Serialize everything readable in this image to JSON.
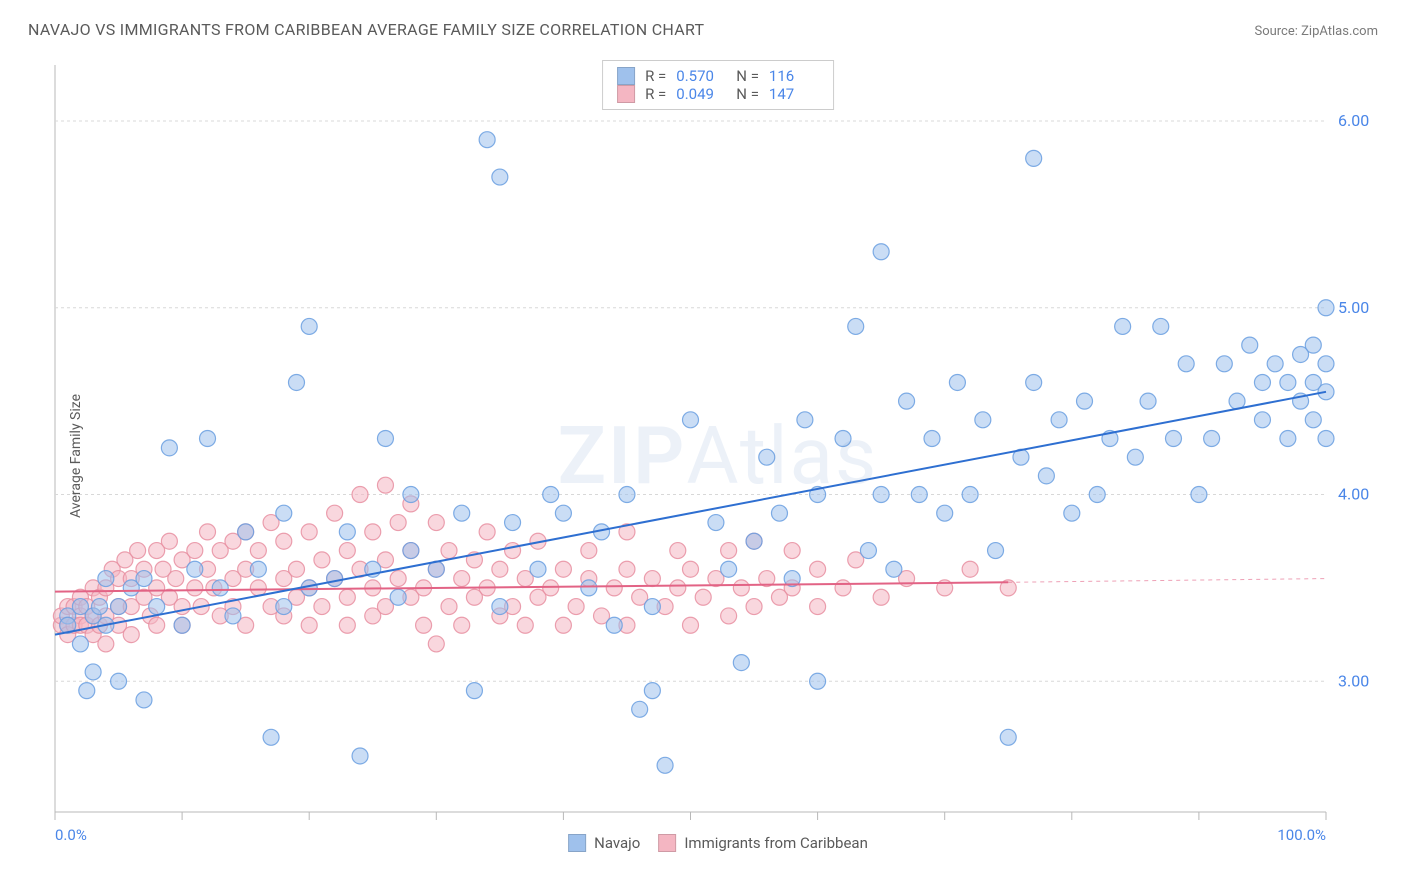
{
  "header": {
    "title": "NAVAJO VS IMMIGRANTS FROM CARIBBEAN AVERAGE FAMILY SIZE CORRELATION CHART",
    "source_label": "Source: ZipAtlas.com"
  },
  "ylabel": "Average Family Size",
  "watermark": {
    "bold": "ZIP",
    "rest": "Atlas"
  },
  "chart": {
    "type": "scatter",
    "background_color": "#ffffff",
    "border_color": "#b8b8b8",
    "grid_color": "#d8d8d8",
    "grid_dash": "3,3",
    "xlim": [
      0,
      100
    ],
    "ylim": [
      2.3,
      6.3
    ],
    "x_ticks": [
      0,
      10,
      20,
      30,
      40,
      50,
      60,
      70,
      80,
      90,
      100
    ],
    "y_ticks": [
      3.0,
      4.0,
      5.0,
      6.0
    ],
    "y_tick_labels": [
      "3.00",
      "4.00",
      "5.00",
      "6.00"
    ],
    "x_tick_labels_shown": {
      "0": "0.0%",
      "100": "100.0%"
    },
    "tick_label_color": "#4a86e8",
    "tick_label_fontsize": 16,
    "axis_label_fontsize": 14,
    "marker_radius": 8,
    "marker_opacity": 0.55,
    "marker_stroke_opacity": 0.85,
    "series": {
      "navajo": {
        "label": "Navajo",
        "fill": "#9fc1ec",
        "stroke": "#6a9fe0",
        "R": "0.570",
        "N": "116",
        "trend": {
          "x1": 0,
          "y1": 3.25,
          "x2": 100,
          "y2": 4.55,
          "color": "#2e6fd1",
          "width": 2
        },
        "points": [
          [
            1,
            3.35
          ],
          [
            1,
            3.3
          ],
          [
            2,
            3.4
          ],
          [
            2,
            3.2
          ],
          [
            2.5,
            2.95
          ],
          [
            3,
            3.35
          ],
          [
            3,
            3.05
          ],
          [
            3.5,
            3.4
          ],
          [
            4,
            3.55
          ],
          [
            4,
            3.3
          ],
          [
            5,
            3.4
          ],
          [
            5,
            3.0
          ],
          [
            6,
            3.5
          ],
          [
            7,
            3.55
          ],
          [
            7,
            2.9
          ],
          [
            8,
            3.4
          ],
          [
            9,
            4.25
          ],
          [
            10,
            3.3
          ],
          [
            11,
            3.6
          ],
          [
            12,
            4.3
          ],
          [
            13,
            3.5
          ],
          [
            14,
            3.35
          ],
          [
            15,
            3.8
          ],
          [
            16,
            3.6
          ],
          [
            17,
            2.7
          ],
          [
            18,
            3.9
          ],
          [
            18,
            3.4
          ],
          [
            19,
            4.6
          ],
          [
            20,
            3.5
          ],
          [
            20,
            4.9
          ],
          [
            22,
            3.55
          ],
          [
            23,
            3.8
          ],
          [
            24,
            2.6
          ],
          [
            25,
            3.6
          ],
          [
            26,
            4.3
          ],
          [
            27,
            3.45
          ],
          [
            28,
            3.7
          ],
          [
            28,
            4.0
          ],
          [
            30,
            3.6
          ],
          [
            32,
            3.9
          ],
          [
            33,
            2.95
          ],
          [
            34,
            5.9
          ],
          [
            35,
            3.4
          ],
          [
            35,
            5.7
          ],
          [
            36,
            3.85
          ],
          [
            38,
            3.6
          ],
          [
            39,
            4.0
          ],
          [
            40,
            3.9
          ],
          [
            42,
            3.5
          ],
          [
            43,
            3.8
          ],
          [
            44,
            3.3
          ],
          [
            45,
            4.0
          ],
          [
            46,
            2.85
          ],
          [
            47,
            2.95
          ],
          [
            47,
            3.4
          ],
          [
            48,
            2.55
          ],
          [
            50,
            4.4
          ],
          [
            52,
            3.85
          ],
          [
            53,
            3.6
          ],
          [
            54,
            3.1
          ],
          [
            55,
            3.75
          ],
          [
            56,
            4.2
          ],
          [
            57,
            3.9
          ],
          [
            58,
            3.55
          ],
          [
            59,
            4.4
          ],
          [
            60,
            3.0
          ],
          [
            60,
            4.0
          ],
          [
            62,
            4.3
          ],
          [
            63,
            4.9
          ],
          [
            64,
            3.7
          ],
          [
            65,
            4.0
          ],
          [
            65,
            5.3
          ],
          [
            66,
            3.6
          ],
          [
            67,
            4.5
          ],
          [
            68,
            4.0
          ],
          [
            69,
            4.3
          ],
          [
            70,
            3.9
          ],
          [
            71,
            4.6
          ],
          [
            72,
            4.0
          ],
          [
            73,
            4.4
          ],
          [
            74,
            3.7
          ],
          [
            75,
            2.7
          ],
          [
            76,
            4.2
          ],
          [
            77,
            4.6
          ],
          [
            77,
            5.8
          ],
          [
            78,
            4.1
          ],
          [
            79,
            4.4
          ],
          [
            80,
            3.9
          ],
          [
            81,
            4.5
          ],
          [
            82,
            4.0
          ],
          [
            83,
            4.3
          ],
          [
            84,
            4.9
          ],
          [
            85,
            4.2
          ],
          [
            86,
            4.5
          ],
          [
            87,
            4.9
          ],
          [
            88,
            4.3
          ],
          [
            89,
            4.7
          ],
          [
            90,
            4.0
          ],
          [
            91,
            4.3
          ],
          [
            92,
            4.7
          ],
          [
            93,
            4.5
          ],
          [
            94,
            4.8
          ],
          [
            95,
            4.4
          ],
          [
            95,
            4.6
          ],
          [
            96,
            4.7
          ],
          [
            97,
            4.3
          ],
          [
            97,
            4.6
          ],
          [
            98,
            4.75
          ],
          [
            98,
            4.5
          ],
          [
            99,
            4.6
          ],
          [
            99,
            4.8
          ],
          [
            99,
            4.4
          ],
          [
            100,
            5.0
          ],
          [
            100,
            4.7
          ],
          [
            100,
            4.55
          ],
          [
            100,
            4.3
          ]
        ]
      },
      "caribbean": {
        "label": "Immigrants from Caribbean",
        "fill": "#f4b6c2",
        "stroke": "#e88fa1",
        "R": "0.049",
        "N": "147",
        "trend": {
          "x1": 0,
          "y1": 3.48,
          "x2": 75,
          "y2": 3.53,
          "color": "#e26385",
          "width": 2,
          "dashed_ext": {
            "x1": 75,
            "y1": 3.53,
            "x2": 100,
            "y2": 3.55
          }
        },
        "points": [
          [
            0.5,
            3.3
          ],
          [
            0.5,
            3.35
          ],
          [
            1,
            3.3
          ],
          [
            1,
            3.4
          ],
          [
            1,
            3.25
          ],
          [
            1.5,
            3.3
          ],
          [
            1.5,
            3.4
          ],
          [
            2,
            3.35
          ],
          [
            2,
            3.3
          ],
          [
            2,
            3.45
          ],
          [
            2.5,
            3.3
          ],
          [
            2.5,
            3.4
          ],
          [
            3,
            3.5
          ],
          [
            3,
            3.35
          ],
          [
            3,
            3.25
          ],
          [
            3.5,
            3.45
          ],
          [
            3.5,
            3.3
          ],
          [
            4,
            3.5
          ],
          [
            4,
            3.35
          ],
          [
            4,
            3.2
          ],
          [
            4.5,
            3.6
          ],
          [
            5,
            3.4
          ],
          [
            5,
            3.55
          ],
          [
            5,
            3.3
          ],
          [
            5.5,
            3.65
          ],
          [
            6,
            3.4
          ],
          [
            6,
            3.55
          ],
          [
            6,
            3.25
          ],
          [
            6.5,
            3.7
          ],
          [
            7,
            3.45
          ],
          [
            7,
            3.6
          ],
          [
            7.5,
            3.35
          ],
          [
            8,
            3.5
          ],
          [
            8,
            3.7
          ],
          [
            8,
            3.3
          ],
          [
            8.5,
            3.6
          ],
          [
            9,
            3.45
          ],
          [
            9,
            3.75
          ],
          [
            9.5,
            3.55
          ],
          [
            10,
            3.4
          ],
          [
            10,
            3.65
          ],
          [
            10,
            3.3
          ],
          [
            11,
            3.5
          ],
          [
            11,
            3.7
          ],
          [
            11.5,
            3.4
          ],
          [
            12,
            3.6
          ],
          [
            12,
            3.8
          ],
          [
            12.5,
            3.5
          ],
          [
            13,
            3.35
          ],
          [
            13,
            3.7
          ],
          [
            14,
            3.55
          ],
          [
            14,
            3.4
          ],
          [
            14,
            3.75
          ],
          [
            15,
            3.6
          ],
          [
            15,
            3.3
          ],
          [
            15,
            3.8
          ],
          [
            16,
            3.5
          ],
          [
            16,
            3.7
          ],
          [
            17,
            3.4
          ],
          [
            17,
            3.85
          ],
          [
            18,
            3.55
          ],
          [
            18,
            3.35
          ],
          [
            18,
            3.75
          ],
          [
            19,
            3.6
          ],
          [
            19,
            3.45
          ],
          [
            20,
            3.5
          ],
          [
            20,
            3.8
          ],
          [
            20,
            3.3
          ],
          [
            21,
            3.65
          ],
          [
            21,
            3.4
          ],
          [
            22,
            3.55
          ],
          [
            22,
            3.9
          ],
          [
            23,
            3.45
          ],
          [
            23,
            3.7
          ],
          [
            23,
            3.3
          ],
          [
            24,
            3.6
          ],
          [
            24,
            4.0
          ],
          [
            25,
            3.5
          ],
          [
            25,
            3.8
          ],
          [
            25,
            3.35
          ],
          [
            26,
            3.65
          ],
          [
            26,
            3.4
          ],
          [
            26,
            4.05
          ],
          [
            27,
            3.55
          ],
          [
            27,
            3.85
          ],
          [
            28,
            3.45
          ],
          [
            28,
            3.7
          ],
          [
            28,
            3.95
          ],
          [
            29,
            3.5
          ],
          [
            29,
            3.3
          ],
          [
            30,
            3.6
          ],
          [
            30,
            3.85
          ],
          [
            30,
            3.2
          ],
          [
            31,
            3.7
          ],
          [
            31,
            3.4
          ],
          [
            32,
            3.55
          ],
          [
            32,
            3.3
          ],
          [
            33,
            3.65
          ],
          [
            33,
            3.45
          ],
          [
            34,
            3.5
          ],
          [
            34,
            3.8
          ],
          [
            35,
            3.35
          ],
          [
            35,
            3.6
          ],
          [
            36,
            3.4
          ],
          [
            36,
            3.7
          ],
          [
            37,
            3.3
          ],
          [
            37,
            3.55
          ],
          [
            38,
            3.45
          ],
          [
            38,
            3.75
          ],
          [
            39,
            3.5
          ],
          [
            40,
            3.6
          ],
          [
            40,
            3.3
          ],
          [
            41,
            3.4
          ],
          [
            42,
            3.55
          ],
          [
            42,
            3.7
          ],
          [
            43,
            3.35
          ],
          [
            44,
            3.5
          ],
          [
            45,
            3.6
          ],
          [
            45,
            3.3
          ],
          [
            45,
            3.8
          ],
          [
            46,
            3.45
          ],
          [
            47,
            3.55
          ],
          [
            48,
            3.4
          ],
          [
            49,
            3.5
          ],
          [
            49,
            3.7
          ],
          [
            50,
            3.3
          ],
          [
            50,
            3.6
          ],
          [
            51,
            3.45
          ],
          [
            52,
            3.55
          ],
          [
            53,
            3.35
          ],
          [
            53,
            3.7
          ],
          [
            54,
            3.5
          ],
          [
            55,
            3.4
          ],
          [
            55,
            3.75
          ],
          [
            56,
            3.55
          ],
          [
            57,
            3.45
          ],
          [
            58,
            3.5
          ],
          [
            58,
            3.7
          ],
          [
            60,
            3.4
          ],
          [
            60,
            3.6
          ],
          [
            62,
            3.5
          ],
          [
            63,
            3.65
          ],
          [
            65,
            3.45
          ],
          [
            67,
            3.55
          ],
          [
            70,
            3.5
          ],
          [
            72,
            3.6
          ],
          [
            75,
            3.5
          ]
        ]
      }
    }
  },
  "legend_bottom": [
    {
      "key": "navajo"
    },
    {
      "key": "caribbean"
    }
  ]
}
